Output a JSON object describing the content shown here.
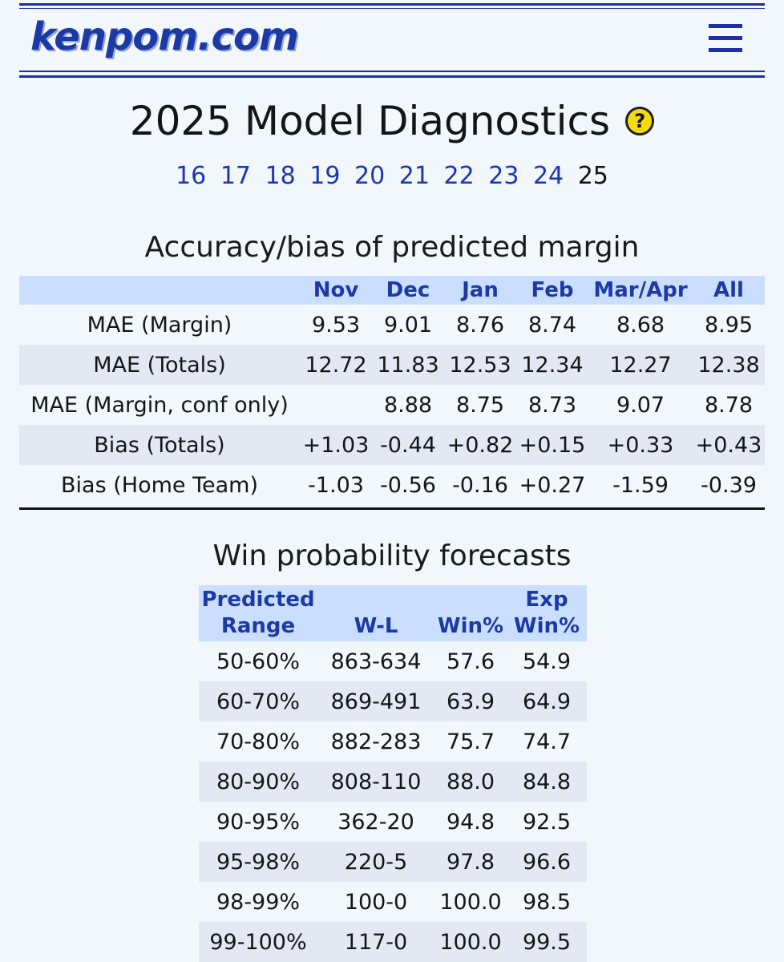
{
  "header": {
    "logo": "kenpom.com",
    "menu_icon": "hamburger-menu-icon"
  },
  "page": {
    "title": "2025 Model Diagnostics",
    "help_icon": "?",
    "years": [
      "16",
      "17",
      "18",
      "19",
      "20",
      "21",
      "22",
      "23",
      "24"
    ],
    "current_year": "25"
  },
  "accuracy": {
    "title": "Accuracy/bias of predicted margin",
    "columns": [
      "",
      "Nov",
      "Dec",
      "Jan",
      "Feb",
      "Mar/Apr",
      "All"
    ],
    "rows": [
      [
        "MAE (Margin)",
        "9.53",
        "9.01",
        "8.76",
        "8.74",
        "8.68",
        "8.95"
      ],
      [
        "MAE (Totals)",
        "12.72",
        "11.83",
        "12.53",
        "12.34",
        "12.27",
        "12.38"
      ],
      [
        "MAE (Margin, conf only)",
        "",
        "8.88",
        "8.75",
        "8.73",
        "9.07",
        "8.78"
      ],
      [
        "Bias (Totals)",
        "+1.03",
        "-0.44",
        "+0.82",
        "+0.15",
        "+0.33",
        "+0.43"
      ],
      [
        "Bias (Home Team)",
        "-1.03",
        "-0.56",
        "-0.16",
        "+0.27",
        "-1.59",
        "-0.39"
      ]
    ]
  },
  "win_prob": {
    "title": "Win probability forecasts",
    "columns": [
      {
        "line1": "Predicted",
        "line2": "Range"
      },
      {
        "line1": "",
        "line2": "W-L"
      },
      {
        "line1": "",
        "line2": "Win%"
      },
      {
        "line1": "Exp",
        "line2": "Win%"
      }
    ],
    "rows": [
      [
        "50-60%",
        "863-634",
        "57.6",
        "54.9"
      ],
      [
        "60-70%",
        "869-491",
        "63.9",
        "64.9"
      ],
      [
        "70-80%",
        "882-283",
        "75.7",
        "74.7"
      ],
      [
        "80-90%",
        "808-110",
        "88.0",
        "84.8"
      ],
      [
        "90-95%",
        "362-20",
        "94.8",
        "92.5"
      ],
      [
        "95-98%",
        "220-5",
        "97.8",
        "96.6"
      ],
      [
        "98-99%",
        "100-0",
        "100.0",
        "98.5"
      ],
      [
        "99-100%",
        "117-0",
        "100.0",
        "99.5"
      ]
    ]
  }
}
